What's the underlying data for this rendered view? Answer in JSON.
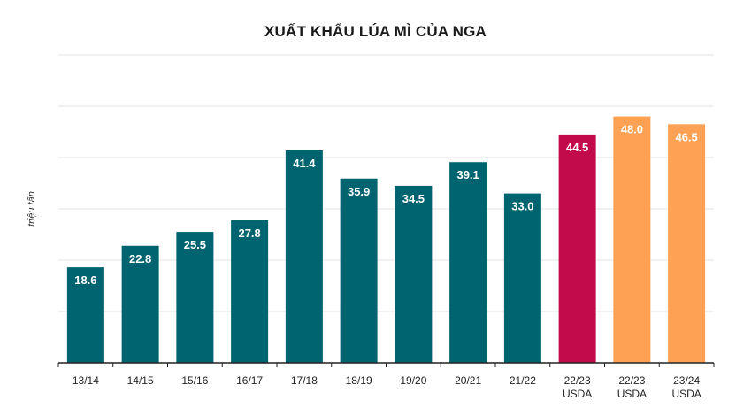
{
  "chart_data": {
    "type": "bar",
    "title": "XUẤT KHẨU LÚA MÌ CỦA NGA",
    "ylabel": "triệu tấn",
    "xlabel": "",
    "ylim": [
      0,
      60
    ],
    "grid": true,
    "categories": [
      [
        "13/14"
      ],
      [
        "14/15"
      ],
      [
        "15/16"
      ],
      [
        "16/17"
      ],
      [
        "17/18"
      ],
      [
        "18/19"
      ],
      [
        "19/20"
      ],
      [
        "20/21"
      ],
      [
        "21/22"
      ],
      [
        "22/23",
        "USDA"
      ],
      [
        "22/23",
        "USDA"
      ],
      [
        "23/24",
        "USDA"
      ]
    ],
    "values": [
      18.6,
      22.8,
      25.5,
      27.8,
      41.4,
      35.9,
      34.5,
      39.1,
      33.0,
      44.5,
      48.0,
      46.5
    ],
    "value_labels": [
      "18.6",
      "22.8",
      "25.5",
      "27.8",
      "41.4",
      "35.9",
      "34.5",
      "39.1",
      "33.0",
      "44.5",
      "48.0",
      "46.5"
    ],
    "colors": [
      "#006470",
      "#006470",
      "#006470",
      "#006470",
      "#006470",
      "#006470",
      "#006470",
      "#006470",
      "#006470",
      "#c20b4a",
      "#ffa154",
      "#ffa154"
    ]
  }
}
